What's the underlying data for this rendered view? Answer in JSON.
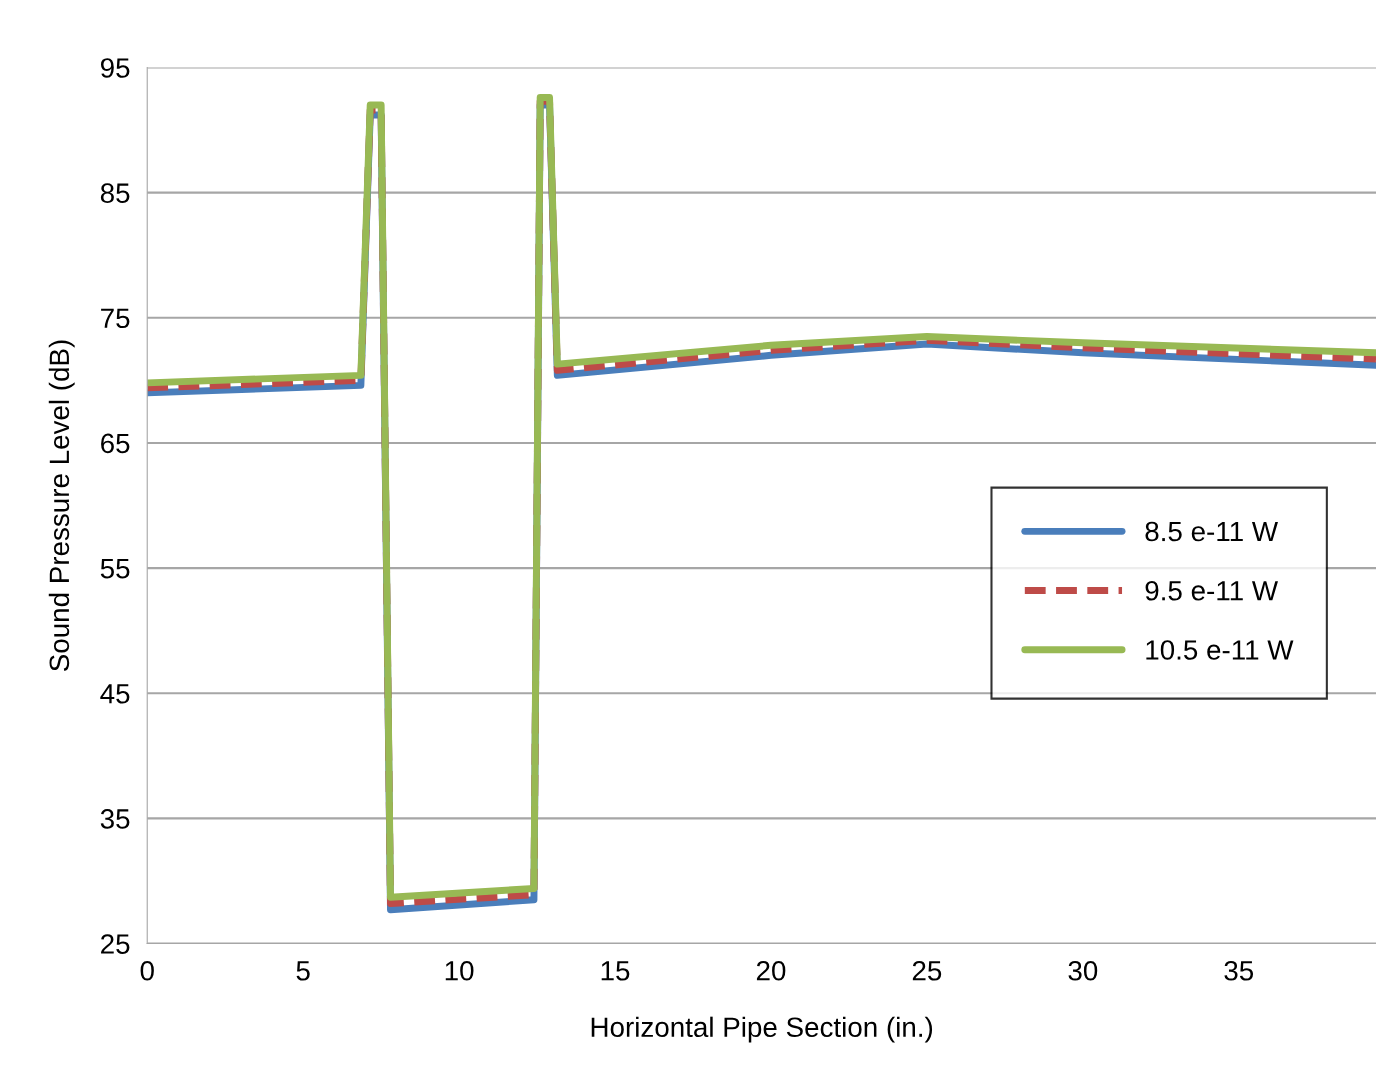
{
  "chart_data": {
    "type": "line",
    "xlabel": "Horizontal Pipe Section (in.)",
    "ylabel": "Sound Pressure Level (dB)",
    "x": [
      0,
      6.85,
      7.15,
      7.5,
      7.8,
      12.4,
      12.6,
      12.9,
      13.15,
      20,
      25,
      30,
      39.4
    ],
    "series": [
      {
        "name": "8.5 e-11 W",
        "color": "#4a7ebb",
        "line_style": "solid",
        "values": [
          69.0,
          69.6,
          91.2,
          91.2,
          27.7,
          28.5,
          92.0,
          92.0,
          70.4,
          72.0,
          72.9,
          72.2,
          71.2
        ]
      },
      {
        "name": "9.5 e-11 W",
        "color": "#be4b48",
        "line_style": "dashed",
        "values": [
          69.4,
          70.0,
          91.6,
          91.6,
          28.2,
          28.9,
          92.3,
          92.3,
          70.8,
          72.4,
          73.2,
          72.6,
          71.7
        ]
      },
      {
        "name": "10.5 e-11 W",
        "color": "#98b954",
        "line_style": "solid",
        "values": [
          69.8,
          70.4,
          92.0,
          92.0,
          28.7,
          29.4,
          92.6,
          92.6,
          71.3,
          72.8,
          73.5,
          73.0,
          72.2
        ]
      }
    ],
    "xlim": [
      0,
      39.4
    ],
    "xticks": [
      0,
      5,
      10,
      15,
      20,
      25,
      30,
      35
    ],
    "ylim": [
      25,
      95
    ],
    "yticks": [
      25,
      35,
      45,
      55,
      65,
      75,
      85,
      95
    ],
    "grid": "y",
    "legend": "right",
    "marker": "none"
  }
}
